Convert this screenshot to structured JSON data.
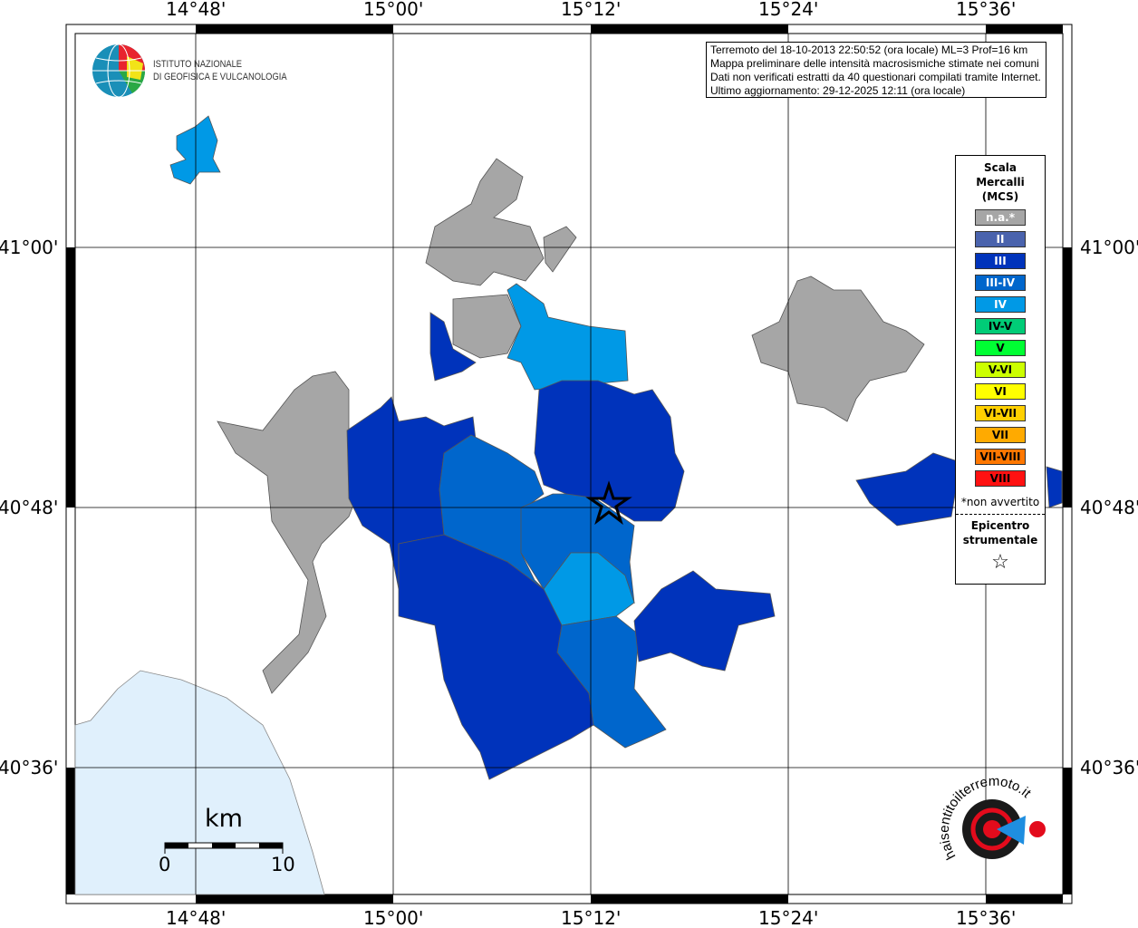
{
  "header": {
    "info_lines": [
      "Terremoto del 18-10-2013 22:50:52 (ora locale) ML=3 Prof=16 km",
      "Mappa preliminare delle intensità macrosismiche stimate nei comuni",
      "Dati non verificati estratti da 40 questionari compilati tramite Internet.",
      "Ultimo aggiornamento: 29-12-2025 12:11 (ora locale)"
    ]
  },
  "logo_ingv": {
    "line1": "ISTITUTO NAZIONALE",
    "line2": "DI GEOFISICA E VULCANOLOGIA"
  },
  "logo_hsit": {
    "text": "www.haisentitoilterremoto.it"
  },
  "axes": {
    "lon_labels": [
      "14°48'",
      "15°00'",
      "15°12'",
      "15°24'",
      "15°36'"
    ],
    "lat_labels": [
      "41°00'",
      "40°48'",
      "40°36'"
    ]
  },
  "legend": {
    "title": "Scala Mercalli (MCS)",
    "title_lines": [
      "Scala",
      "Mercalli",
      "(MCS)"
    ],
    "classes": [
      {
        "label": "n.a.*",
        "color": "#a6a6a6",
        "text": "#fff"
      },
      {
        "label": "II",
        "color": "#4a63ad",
        "text": "#fff"
      },
      {
        "label": "III",
        "color": "#0033bb",
        "text": "#fff"
      },
      {
        "label": "III-IV",
        "color": "#0066cc",
        "text": "#fff"
      },
      {
        "label": "IV",
        "color": "#0099e6",
        "text": "#fff"
      },
      {
        "label": "IV-V",
        "color": "#00cc77",
        "text": "#000"
      },
      {
        "label": "V",
        "color": "#00ff33",
        "text": "#000"
      },
      {
        "label": "V-VI",
        "color": "#ccff00",
        "text": "#000"
      },
      {
        "label": "VI",
        "color": "#ffff00",
        "text": "#000"
      },
      {
        "label": "VI-VII",
        "color": "#ffd000",
        "text": "#000"
      },
      {
        "label": "VII",
        "color": "#ffaa00",
        "text": "#000"
      },
      {
        "label": "VII-VIII",
        "color": "#ff7700",
        "text": "#000"
      },
      {
        "label": "VIII",
        "color": "#ff1111",
        "text": "#000"
      }
    ],
    "note": "*non avvertito",
    "epicenter_lines": [
      "Epicentro",
      "strumentale"
    ],
    "epicenter_symbol": "☆"
  },
  "scale": {
    "unit": "km",
    "min": "0",
    "max": "10"
  },
  "colors": {
    "na": "#a6a6a6",
    "III": "#0033bb",
    "III-IV": "#0066cc",
    "IV": "#0099e6",
    "sea": "#e0f0fc"
  }
}
